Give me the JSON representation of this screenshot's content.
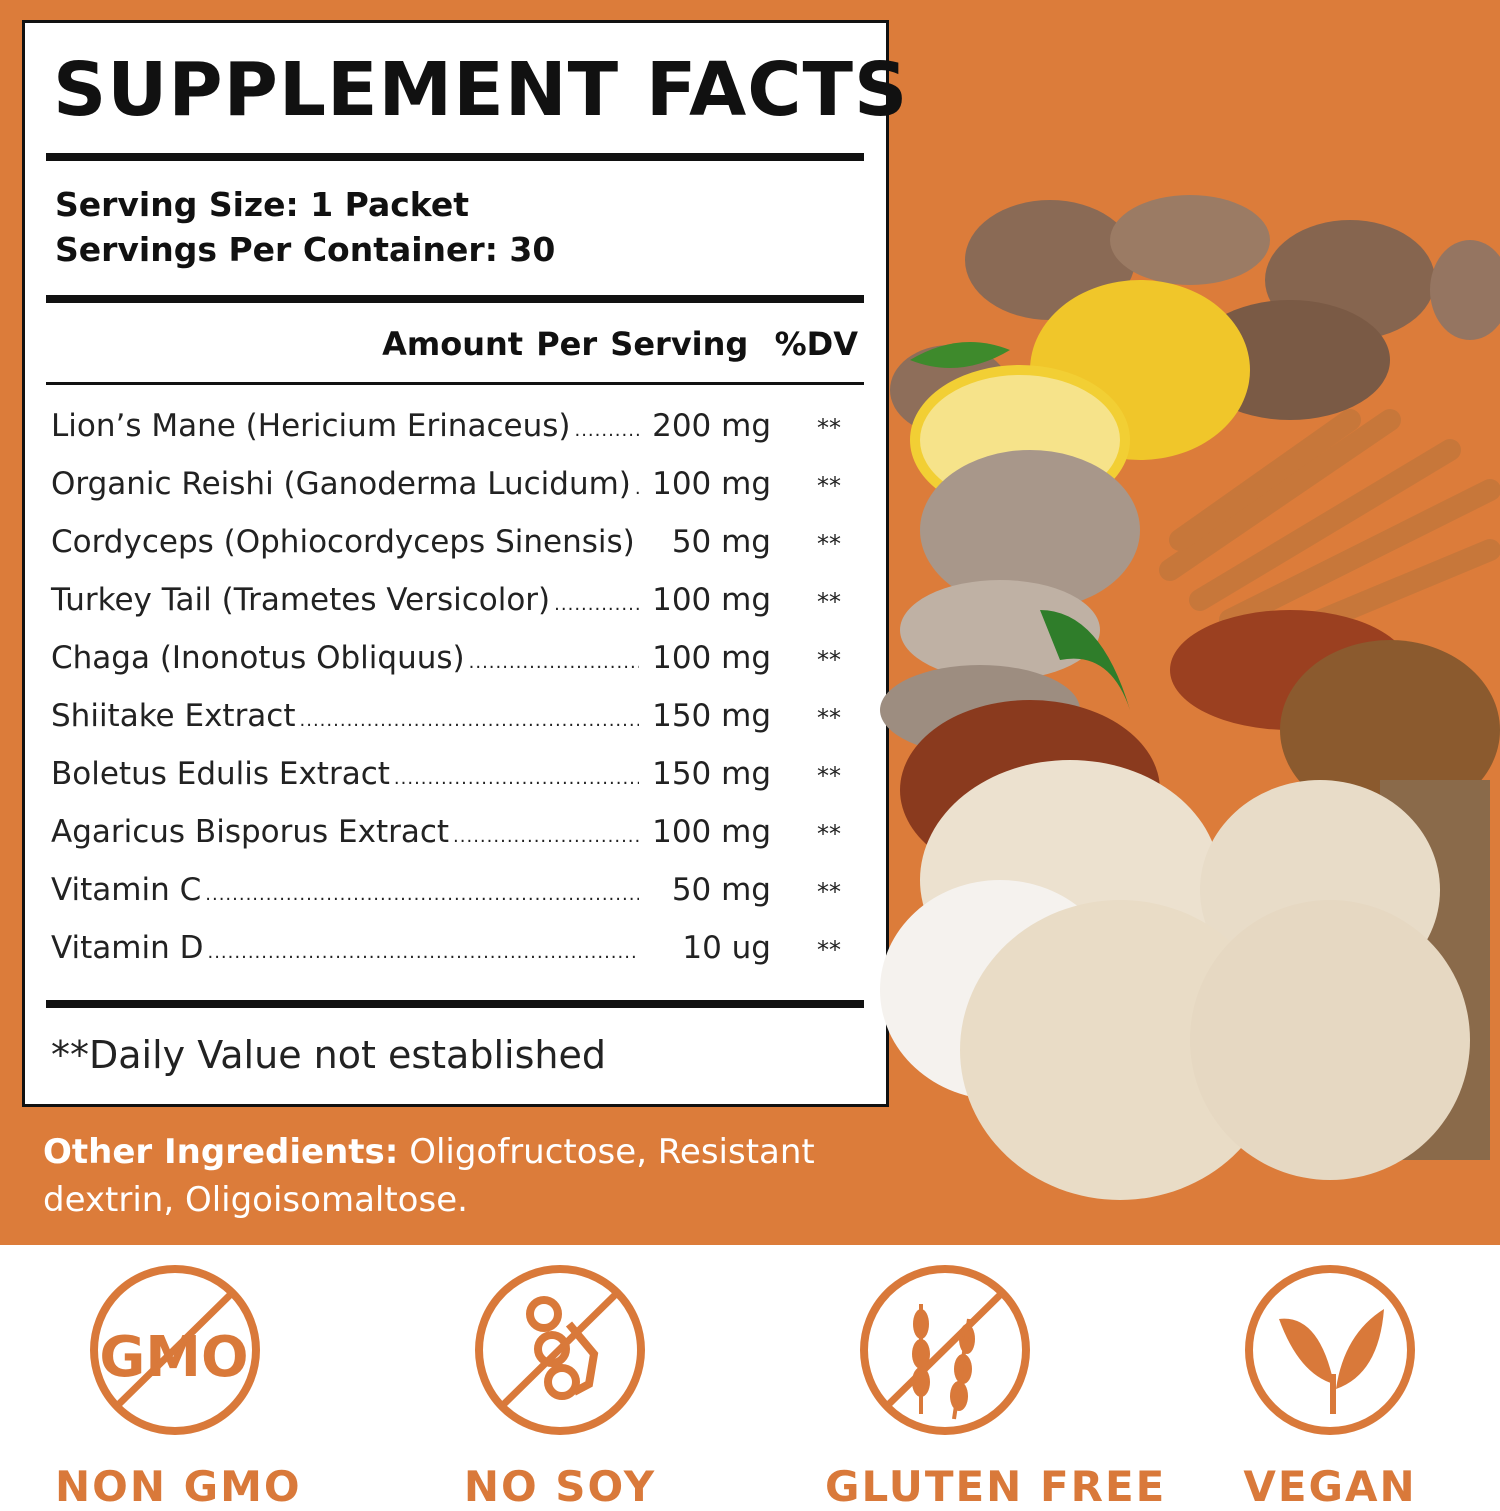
{
  "title": "SUPPLEMENT FACTS",
  "serving_size": "Serving Size: 1 Packet",
  "servings_per_container": "Servings Per Container: 30",
  "header": {
    "amount": "Amount Per Serving",
    "dv": "%DV"
  },
  "ingredients": [
    {
      "name": "Lion’s Mane (Hericium Erinaceus)",
      "amount": "200 mg",
      "dv": "**"
    },
    {
      "name": "Organic Reishi (Ganoderma Lucidum)",
      "amount": "100 mg",
      "dv": "**"
    },
    {
      "name": "Cordyceps (Ophiocordyceps Sinensis)",
      "amount": "50 mg",
      "dv": "**"
    },
    {
      "name": "Turkey Tail (Trametes Versicolor)",
      "amount": "100 mg",
      "dv": "**"
    },
    {
      "name": "Chaga (Inonotus Obliquus)",
      "amount": "100 mg",
      "dv": "**"
    },
    {
      "name": "Shiitake Extract",
      "amount": "150 mg",
      "dv": "**"
    },
    {
      "name": "Boletus Edulis Extract",
      "amount": "150 mg",
      "dv": "**"
    },
    {
      "name": "Agaricus Bisporus Extract",
      "amount": "100 mg",
      "dv": "**"
    },
    {
      "name": "Vitamin C",
      "amount": "50 mg",
      "dv": "**"
    },
    {
      "name": "Vitamin D",
      "amount": "10 ug",
      "dv": "**"
    }
  ],
  "footnote": "**Daily Value not established",
  "other_ingredients": {
    "label": "Other Ingredients:",
    "text": " Oligofructose, Resistant dextrin, Oligoisomaltose."
  },
  "badges": [
    {
      "label": "NON GMO",
      "icon": "no-gmo-icon",
      "icon_text": "GMO"
    },
    {
      "label": "NO SOY",
      "icon": "no-soy-icon"
    },
    {
      "label": "GLUTEN FREE",
      "icon": "gluten-free-icon"
    },
    {
      "label": "VEGAN",
      "icon": "vegan-leaf-icon"
    }
  ],
  "colors": {
    "background": "#DC7C3A",
    "accent": "#D9793A",
    "text": "#111111"
  }
}
